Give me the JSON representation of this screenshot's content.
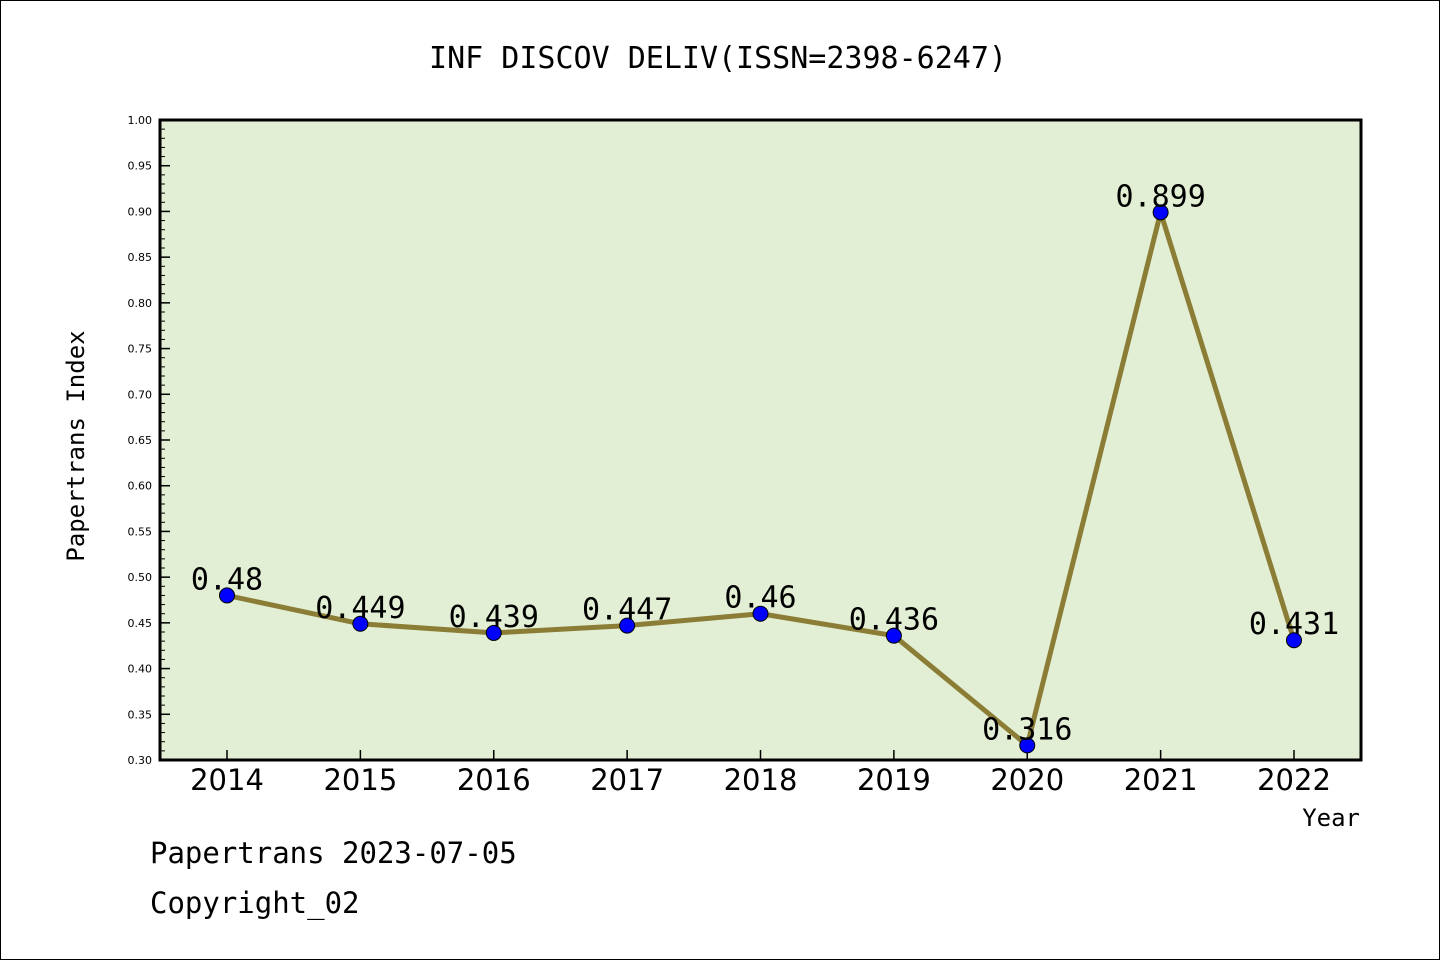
{
  "chart_data": {
    "type": "line",
    "title": "INF DISCOV DELIV(ISSN=2398-6247)",
    "xlabel": "Year",
    "ylabel": "Papertrans Index",
    "categories": [
      "2014",
      "2015",
      "2016",
      "2017",
      "2018",
      "2019",
      "2020",
      "2021",
      "2022"
    ],
    "values": [
      0.48,
      0.449,
      0.439,
      0.447,
      0.46,
      0.436,
      0.316,
      0.899,
      0.431
    ],
    "data_labels": [
      "0.48",
      "0.449",
      "0.439",
      "0.447",
      "0.46",
      "0.436",
      "0.316",
      "0.899",
      "0.431"
    ],
    "ylim": [
      0.3,
      1.0
    ],
    "y_ticks": [
      "0.30",
      "0.35",
      "0.40",
      "0.45",
      "0.50",
      "0.55",
      "0.60",
      "0.65",
      "0.70",
      "0.75",
      "0.80",
      "0.85",
      "0.90",
      "0.95",
      "1.00"
    ],
    "grid": false,
    "legend": "none",
    "colors": {
      "plot_background": "#e2efd5",
      "line": "#8b7d35",
      "marker": "#0000ff"
    }
  },
  "footer": {
    "line1": "Papertrans 2023-07-05",
    "line2": "Copyright_02"
  }
}
